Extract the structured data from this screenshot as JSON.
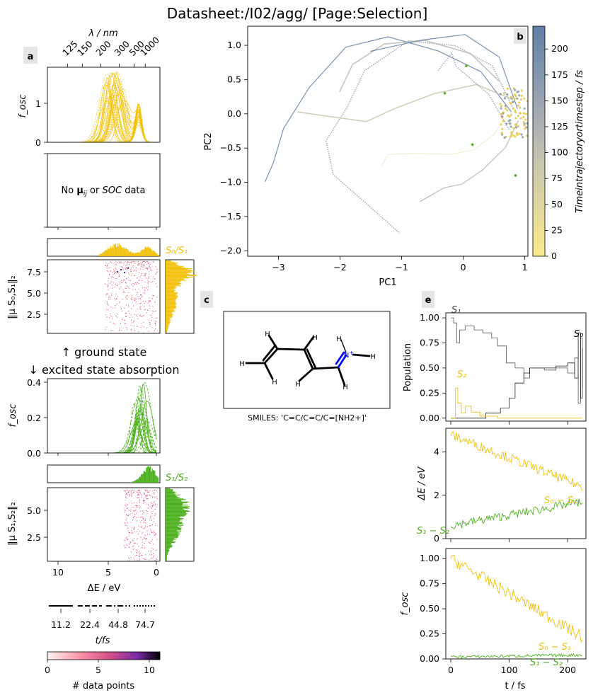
{
  "title": "Datasheet:/I02/agg/ [Page:Selection]",
  "colors": {
    "gold": "#f2c10a",
    "green": "#4caf1c",
    "blue": "#0000ff",
    "panel_tag_bg": "#e5e5e5"
  },
  "panel_tags": {
    "a": "a",
    "b": "b",
    "c": "c",
    "e": "e"
  },
  "chart_data": [
    {
      "id": "a_spectrum",
      "type": "line",
      "top_axis": {
        "label": "λ / nm",
        "ticks": [
          "125",
          "150",
          "200",
          "300",
          "500",
          "1000"
        ]
      },
      "ylabel": "f_osc",
      "ylim": [
        0,
        1.9
      ],
      "yticks": [
        "0",
        "1"
      ],
      "series_color": "#f2c10a",
      "peak_eV": 4.5,
      "peak_f": 1.85
    },
    {
      "id": "a_soc_placeholder",
      "type": "text",
      "message": {
        "pre": "No ",
        "mu": "μ",
        "sub": "ij",
        "mid": " or ",
        "soc": "SOC",
        "post": " data"
      }
    },
    {
      "id": "a_s0s1_hist",
      "type": "heatmap",
      "label": "S₀/S₁",
      "ylabel": "‖μ S₀,S₁‖₂",
      "yticks": [
        "2.5",
        "5.0",
        "7.5"
      ],
      "ylim": [
        0.3,
        8.8
      ],
      "xlim": [
        11,
        0
      ]
    },
    {
      "id": "a_headings",
      "ground": "↑ ground state",
      "excited": "↓ excited state absorption"
    },
    {
      "id": "a_esa_spectrum",
      "type": "line",
      "ylabel": "f_osc",
      "yticks": [
        "0.0",
        "0.2",
        "0.4"
      ],
      "ylim": [
        0,
        0.42
      ],
      "series_color": "#4caf1c",
      "peak_eV": 1.5,
      "peak_f": 0.4
    },
    {
      "id": "a_s1s2_hist",
      "type": "heatmap",
      "label": "S₁/S₂",
      "ylabel": "‖μ S₁,S₂‖₂",
      "yticks": [
        "2.5",
        "5.0"
      ],
      "ylim": [
        0.3,
        7.3
      ],
      "xlabel": "ΔE / eV",
      "xticks": [
        "10",
        "5",
        "0"
      ],
      "xlim": [
        11,
        0
      ]
    },
    {
      "id": "a_time_legend",
      "type": "legend",
      "entries": [
        "11.2",
        "22.4",
        "44.8",
        "74.7"
      ],
      "title": "t/fs"
    },
    {
      "id": "a_colorbar",
      "type": "colorbar",
      "ticks": [
        "0",
        "5",
        "10"
      ],
      "range": [
        0,
        11
      ],
      "label": "# data points"
    },
    {
      "id": "b_pca",
      "type": "scatter",
      "xlabel": "PC1",
      "ylabel": "PC2",
      "xticks": [
        "−3",
        "−2",
        "−1",
        "0",
        "1"
      ],
      "xlim": [
        -3.5,
        1.05
      ],
      "yticks": [
        "1.0",
        "0.5",
        "0.0",
        "−0.5",
        "−1.0",
        "−1.5",
        "−2.0"
      ],
      "ylim": [
        -2.08,
        1.28
      ],
      "colorbar": {
        "label": "Timeintrajectoryortimestep / fs",
        "ticks": [
          "0",
          "25",
          "50",
          "75",
          "100",
          "125",
          "150",
          "175",
          "200"
        ],
        "range": [
          0,
          222
        ]
      }
    },
    {
      "id": "c_molecule",
      "type": "image",
      "smiles": "SMILES: 'C=C/C=C/C=[NH2+]'",
      "atoms": {
        "H": "H",
        "N": "N",
        "charge": "+"
      }
    },
    {
      "id": "e_population",
      "type": "line",
      "ylabel": "Population",
      "yticks": [
        "0.00",
        "0.25",
        "0.50",
        "0.75",
        "1.00"
      ],
      "ylim": [
        -0.03,
        1.05
      ],
      "xlim": [
        -10,
        230
      ],
      "labels": {
        "S1": "S₁",
        "S0": "S₀",
        "S2": "S₂"
      }
    },
    {
      "id": "e_energy_gap",
      "type": "line",
      "ylabel": "ΔE / eV",
      "yticks": [
        "0",
        "2",
        "4"
      ],
      "ylim": [
        0,
        5.1
      ],
      "labels": {
        "s0s1": "S₀ − S₁",
        "s1s2": "S₁ − S₂"
      }
    },
    {
      "id": "e_fosc",
      "type": "line",
      "ylabel": "f_osc",
      "yticks": [
        "0.00",
        "0.25",
        "0.50",
        "0.75",
        "1.00"
      ],
      "ylim": [
        0,
        1.1
      ],
      "xlabel": "t / fs",
      "xticks": [
        "0",
        "100",
        "200"
      ],
      "labels": {
        "s0s1": "S₀ − S₁",
        "s1s2": "S₁ − S₂"
      }
    }
  ]
}
